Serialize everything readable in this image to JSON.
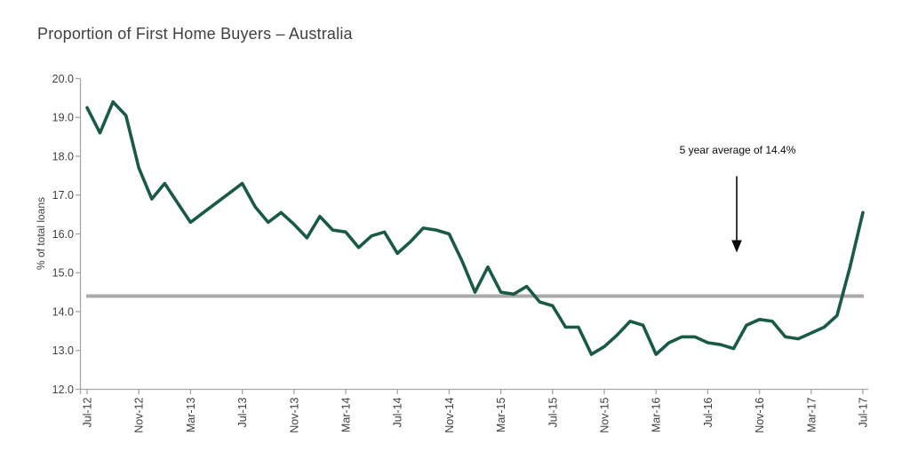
{
  "chart_data": {
    "type": "line",
    "title": "Proportion of First Home Buyers – Australia",
    "xlabel": "",
    "ylabel": "% of total loans",
    "ylim": [
      12.0,
      20.0
    ],
    "ytick_step": 1.0,
    "ytick_labels": [
      "12.0",
      "13.0",
      "14.0",
      "15.0",
      "16.0",
      "17.0",
      "18.0",
      "19.0",
      "20.0"
    ],
    "xtick_labels": [
      "Jul-12",
      "Nov-12",
      "Mar-13",
      "Jul-13",
      "Nov-13",
      "Mar-14",
      "Jul-14",
      "Nov-14",
      "Mar-15",
      "Jul-15",
      "Nov-15",
      "Mar-16",
      "Jul-16",
      "Nov-16",
      "Mar-17",
      "Jul-17"
    ],
    "grid": false,
    "legend": null,
    "series": [
      {
        "name": "Proportion of first home buyers",
        "color": "#195a46",
        "x": [
          "Jul-12",
          "Aug-12",
          "Sep-12",
          "Oct-12",
          "Nov-12",
          "Dec-12",
          "Jan-13",
          "Feb-13",
          "Mar-13",
          "Apr-13",
          "May-13",
          "Jun-13",
          "Jul-13",
          "Aug-13",
          "Sep-13",
          "Oct-13",
          "Nov-13",
          "Dec-13",
          "Jan-14",
          "Feb-14",
          "Mar-14",
          "Apr-14",
          "May-14",
          "Jun-14",
          "Jul-14",
          "Aug-14",
          "Sep-14",
          "Oct-14",
          "Nov-14",
          "Dec-14",
          "Jan-15",
          "Feb-15",
          "Mar-15",
          "Apr-15",
          "May-15",
          "Jun-15",
          "Jul-15",
          "Aug-15",
          "Sep-15",
          "Oct-15",
          "Nov-15",
          "Dec-15",
          "Jan-16",
          "Feb-16",
          "Mar-16",
          "Apr-16",
          "May-16",
          "Jun-16",
          "Jul-16",
          "Aug-16",
          "Sep-16",
          "Oct-16",
          "Nov-16",
          "Dec-16",
          "Jan-17",
          "Feb-17",
          "Mar-17",
          "Apr-17",
          "May-17",
          "Jun-17",
          "Jul-17"
        ],
        "values": [
          19.25,
          18.6,
          19.4,
          19.05,
          17.7,
          16.9,
          17.3,
          16.8,
          16.3,
          16.55,
          16.8,
          17.05,
          17.3,
          16.7,
          16.3,
          16.55,
          16.25,
          15.9,
          16.45,
          16.1,
          16.05,
          15.65,
          15.95,
          16.05,
          15.5,
          15.8,
          16.15,
          16.1,
          16.0,
          15.3,
          14.5,
          15.15,
          14.5,
          14.45,
          14.65,
          14.25,
          14.15,
          13.6,
          13.6,
          12.9,
          13.1,
          13.4,
          13.75,
          13.65,
          12.9,
          13.2,
          13.35,
          13.35,
          13.2,
          13.15,
          13.05,
          13.65,
          13.8,
          13.75,
          13.35,
          13.3,
          13.45,
          13.6,
          13.9,
          15.15,
          16.55
        ]
      }
    ],
    "reference_line": {
      "value": 14.4,
      "label": "5 year average of 14.4%",
      "color": "#a9a9a9"
    },
    "axis_color": "#a6a6a6",
    "text_color": "#404040"
  }
}
